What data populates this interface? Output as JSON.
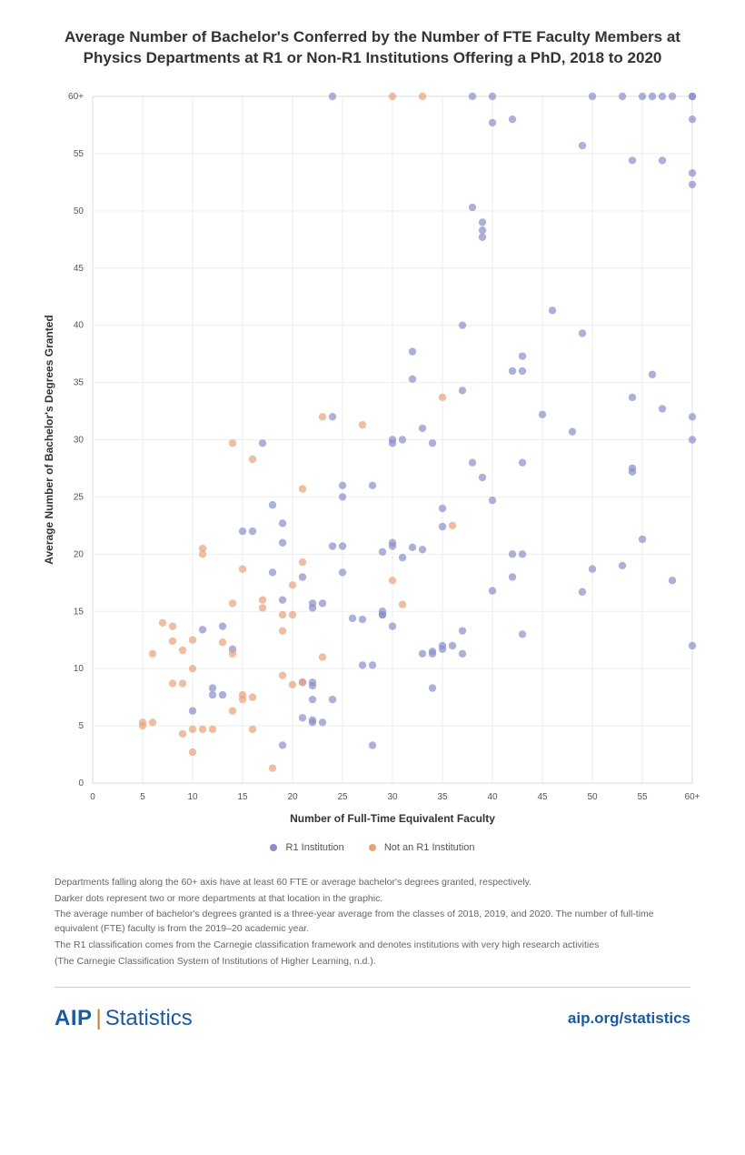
{
  "title_line1": "Average Number of Bachelor's Conferred by the Number of FTE Faculty Members at",
  "title_line2": "Physics Departments at R1 or Non-R1 Institutions Offering a PhD, 2018 to 2020",
  "chart": {
    "type": "scatter",
    "xlim": [
      0,
      60
    ],
    "ylim": [
      0,
      60
    ],
    "xtick_step": 5,
    "ytick_step": 5,
    "x_max_label": "60+",
    "y_max_label": "60+",
    "xlabel": "Number of Full-Time Equivalent Faculty",
    "ylabel": "Average Number of Bachelor's Degrees Granted",
    "axis_label_fontsize": 12,
    "tick_fontsize": 10,
    "background_color": "#ffffff",
    "grid_color": "#eeeeee",
    "grid_width": 1,
    "axis_color": "#cccccc",
    "marker_radius": 4.2,
    "marker_opacity": 0.7,
    "series": {
      "r1": {
        "label": "R1 Institution",
        "color": "#8a8fc9",
        "points": [
          [
            24,
            60
          ],
          [
            38,
            60
          ],
          [
            40,
            60
          ],
          [
            50,
            60
          ],
          [
            53,
            60
          ],
          [
            55,
            60
          ],
          [
            56,
            60
          ],
          [
            57,
            60
          ],
          [
            58,
            60
          ],
          [
            60,
            60
          ],
          [
            60,
            60
          ],
          [
            42,
            58
          ],
          [
            40,
            57.7
          ],
          [
            60,
            58
          ],
          [
            49,
            55.7
          ],
          [
            54,
            54.4
          ],
          [
            57,
            54.4
          ],
          [
            60,
            53.3
          ],
          [
            60,
            52.3
          ],
          [
            38,
            50.3
          ],
          [
            39,
            49
          ],
          [
            39,
            48.3
          ],
          [
            39,
            47.7
          ],
          [
            46,
            41.3
          ],
          [
            37,
            40
          ],
          [
            49,
            39.3
          ],
          [
            32,
            37.7
          ],
          [
            43,
            37.3
          ],
          [
            42,
            36
          ],
          [
            43,
            36
          ],
          [
            56,
            35.7
          ],
          [
            32,
            35.3
          ],
          [
            37,
            34.3
          ],
          [
            54,
            33.7
          ],
          [
            57,
            32.7
          ],
          [
            45,
            32.2
          ],
          [
            60,
            32
          ],
          [
            24,
            32
          ],
          [
            33,
            31
          ],
          [
            48,
            30.7
          ],
          [
            30,
            30
          ],
          [
            31,
            30
          ],
          [
            30,
            29.7
          ],
          [
            34,
            29.7
          ],
          [
            60,
            30
          ],
          [
            17,
            29.7
          ],
          [
            38,
            28
          ],
          [
            43,
            28
          ],
          [
            54,
            27.2
          ],
          [
            54,
            27.5
          ],
          [
            39,
            26.7
          ],
          [
            25,
            26
          ],
          [
            28,
            26
          ],
          [
            25,
            25
          ],
          [
            40,
            24.7
          ],
          [
            18,
            24.3
          ],
          [
            35,
            24
          ],
          [
            35,
            22.4
          ],
          [
            19,
            22.7
          ],
          [
            15,
            22
          ],
          [
            16,
            22
          ],
          [
            55,
            21.3
          ],
          [
            30,
            21
          ],
          [
            19,
            21
          ],
          [
            24,
            20.7
          ],
          [
            25,
            20.7
          ],
          [
            30,
            20.7
          ],
          [
            32,
            20.6
          ],
          [
            33,
            20.4
          ],
          [
            42,
            20
          ],
          [
            29,
            20.2
          ],
          [
            43,
            20
          ],
          [
            53,
            19
          ],
          [
            31,
            19.7
          ],
          [
            18,
            18.4
          ],
          [
            25,
            18.4
          ],
          [
            50,
            18.7
          ],
          [
            21,
            18
          ],
          [
            42,
            18
          ],
          [
            40,
            16.8
          ],
          [
            58,
            17.7
          ],
          [
            49,
            16.7
          ],
          [
            19,
            16
          ],
          [
            23,
            15.7
          ],
          [
            22,
            15.7
          ],
          [
            22,
            15.3
          ],
          [
            29,
            15
          ],
          [
            29,
            14.7
          ],
          [
            29,
            14.7
          ],
          [
            26,
            14.4
          ],
          [
            27,
            14.3
          ],
          [
            30,
            13.7
          ],
          [
            11,
            13.4
          ],
          [
            13,
            13.7
          ],
          [
            37,
            13.3
          ],
          [
            43,
            13
          ],
          [
            66,
            12
          ],
          [
            36,
            12
          ],
          [
            35,
            11.7
          ],
          [
            35,
            12
          ],
          [
            14,
            11.7
          ],
          [
            33,
            11.3
          ],
          [
            34,
            11.3
          ],
          [
            34,
            11.5
          ],
          [
            37,
            11.3
          ],
          [
            27,
            10.3
          ],
          [
            28,
            10.3
          ],
          [
            21,
            8.8
          ],
          [
            22,
            8.8
          ],
          [
            22,
            8.5
          ],
          [
            12,
            8.3
          ],
          [
            34,
            8.3
          ],
          [
            22,
            7.3
          ],
          [
            12,
            7.7
          ],
          [
            13,
            7.7
          ],
          [
            24,
            7.3
          ],
          [
            10,
            6.3
          ],
          [
            21,
            5.7
          ],
          [
            22,
            5.5
          ],
          [
            22,
            5.3
          ],
          [
            23,
            5.3
          ],
          [
            19,
            3.3
          ],
          [
            28,
            3.3
          ]
        ]
      },
      "non_r1": {
        "label": "Not an R1 Institution",
        "color": "#e8a27a",
        "points": [
          [
            30,
            60
          ],
          [
            33,
            60
          ],
          [
            35,
            33.7
          ],
          [
            23,
            32
          ],
          [
            27,
            31.3
          ],
          [
            14,
            29.7
          ],
          [
            16,
            28.3
          ],
          [
            21,
            25.7
          ],
          [
            36,
            22.5
          ],
          [
            11,
            20.5
          ],
          [
            11,
            20
          ],
          [
            21,
            19.3
          ],
          [
            15,
            18.7
          ],
          [
            30,
            17.7
          ],
          [
            20,
            17.3
          ],
          [
            14,
            15.7
          ],
          [
            31,
            15.6
          ],
          [
            17,
            15.3
          ],
          [
            17,
            16
          ],
          [
            7,
            14
          ],
          [
            19,
            14.7
          ],
          [
            20,
            14.7
          ],
          [
            8,
            13.7
          ],
          [
            19,
            13.3
          ],
          [
            10,
            12.5
          ],
          [
            8,
            12.4
          ],
          [
            9,
            11.6
          ],
          [
            13,
            12.3
          ],
          [
            6,
            11.3
          ],
          [
            14,
            11.3
          ],
          [
            23,
            11
          ],
          [
            10,
            10
          ],
          [
            19,
            9.4
          ],
          [
            8,
            8.7
          ],
          [
            9,
            8.7
          ],
          [
            20,
            8.6
          ],
          [
            21,
            8.8
          ],
          [
            16,
            7.5
          ],
          [
            15,
            7.7
          ],
          [
            15,
            7.3
          ],
          [
            14,
            6.3
          ],
          [
            5,
            5.3
          ],
          [
            6,
            5.3
          ],
          [
            5,
            5
          ],
          [
            10,
            4.7
          ],
          [
            11,
            4.7
          ],
          [
            12,
            4.7
          ],
          [
            16,
            4.7
          ],
          [
            9,
            4.3
          ],
          [
            10,
            2.7
          ],
          [
            18,
            1.3
          ]
        ]
      }
    }
  },
  "legend": {
    "r1": "R1 Institution",
    "non_r1": "Not an R1 Institution"
  },
  "footnotes": [
    "Departments falling along the 60+ axis have at least 60 FTE or average bachelor's degrees granted, respectively.",
    "Darker dots represent two or more departments at that location in the graphic.",
    "The average number of bachelor's degrees granted is a three-year average from the classes of 2018, 2019, and 2020. The number of full-time equivalent (FTE) faculty is from the 2019–20 academic year.",
    "The R1 classification comes from the Carnegie classification framework and denotes institutions with very high research activities",
    "(The Carnegie Classification System of Institutions of Higher Learning, n.d.)."
  ],
  "brand": {
    "aip": "AIP",
    "divider": "|",
    "stats": "Statistics"
  },
  "url": "aip.org/statistics",
  "colors": {
    "title": "#333333",
    "footnote": "#666666",
    "brand": "#1a5a9e",
    "brand_divider": "#cc7722"
  }
}
